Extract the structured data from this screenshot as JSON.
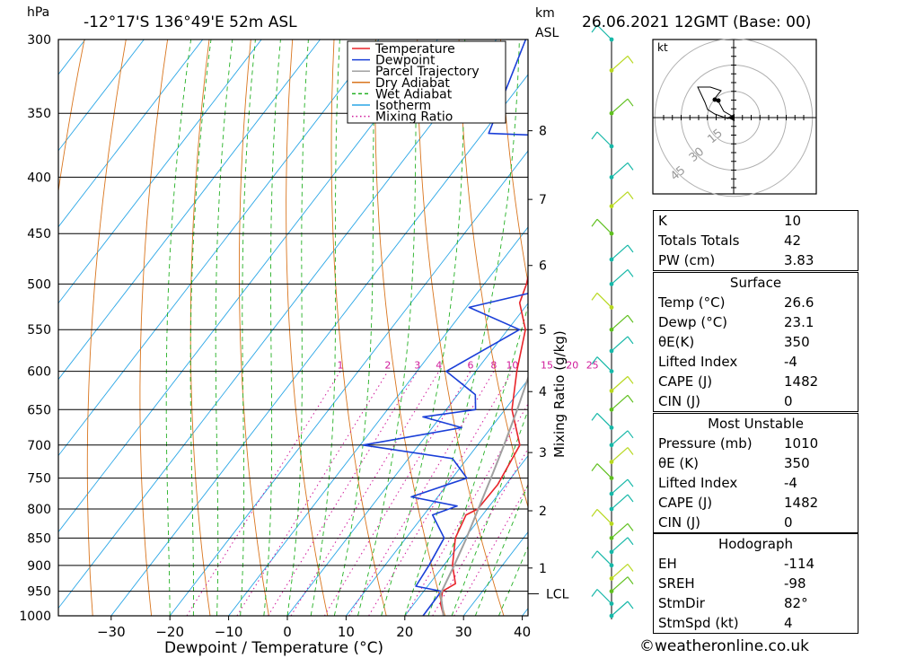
{
  "header": {
    "pressure_unit": "hPa",
    "location": "-12°17'S  136°49'E  52m  ASL",
    "km_label": "km",
    "asl_label": "ASL",
    "datetime": "26.06.2021  12GMT  (Base: 00)"
  },
  "chart_data": {
    "type": "line",
    "title": "",
    "xlabel": "Dewpoint / Temperature (°C)",
    "ylabel": "hPa",
    "secondary_ylabel": "Mixing Ratio (g/kg)",
    "xlim": [
      -40,
      40
    ],
    "ylim": [
      1000,
      300
    ],
    "x_ticks": [
      -30,
      -20,
      -10,
      0,
      10,
      20,
      30,
      40
    ],
    "pressure_levels": [
      300,
      350,
      400,
      450,
      500,
      550,
      600,
      650,
      700,
      750,
      800,
      850,
      900,
      950,
      1000
    ],
    "km_ticks": [
      {
        "km": "1",
        "p": 905
      },
      {
        "km": "2",
        "p": 803
      },
      {
        "km": "3",
        "p": 711
      },
      {
        "km": "4",
        "p": 626
      },
      {
        "km": "5",
        "p": 550
      },
      {
        "km": "6",
        "p": 481
      },
      {
        "km": "7",
        "p": 419
      },
      {
        "km": "8",
        "p": 363
      }
    ],
    "lcl": {
      "label": "LCL",
      "p": 955
    },
    "mixing_ratio_labels": [
      "1",
      "2",
      "3",
      "4",
      "6",
      "8",
      "10",
      "15",
      "20",
      "25"
    ],
    "legend": [
      {
        "name": "Temperature",
        "color": "#e8242a",
        "style": "solid"
      },
      {
        "name": "Dewpoint",
        "color": "#1a3fd8",
        "style": "solid"
      },
      {
        "name": "Parcel Trajectory",
        "color": "#a0a0a0",
        "style": "solid"
      },
      {
        "name": "Dry Adiabat",
        "color": "#d9751e",
        "style": "solid"
      },
      {
        "name": "Wet Adiabat",
        "color": "#23b023",
        "style": "dashed"
      },
      {
        "name": "Isotherm",
        "color": "#2aa6e6",
        "style": "solid"
      },
      {
        "name": "Mixing Ratio",
        "color": "#d01a9a",
        "style": "dotted"
      }
    ],
    "legend_position": "top-right",
    "series": [
      {
        "name": "Temperature",
        "points": [
          {
            "p": 1000,
            "t": 26.6
          },
          {
            "p": 975,
            "t": 24.5
          },
          {
            "p": 950,
            "t": 23.2
          },
          {
            "p": 935,
            "t": 24.4
          },
          {
            "p": 900,
            "t": 21.5
          },
          {
            "p": 850,
            "t": 18.4
          },
          {
            "p": 810,
            "t": 17.2
          },
          {
            "p": 800,
            "t": 18.4
          },
          {
            "p": 760,
            "t": 18.6
          },
          {
            "p": 700,
            "t": 17.2
          },
          {
            "p": 650,
            "t": 11.2
          },
          {
            "p": 600,
            "t": 7.0
          },
          {
            "p": 550,
            "t": 3.0
          },
          {
            "p": 520,
            "t": -1.5
          },
          {
            "p": 500,
            "t": -2.8
          },
          {
            "p": 470,
            "t": -5.6
          },
          {
            "p": 450,
            "t": -6.8
          },
          {
            "p": 400,
            "t": -12.2
          },
          {
            "p": 380,
            "t": -15.8
          },
          {
            "p": 360,
            "t": -16.8
          },
          {
            "p": 330,
            "t": -20.8
          },
          {
            "p": 300,
            "t": -25.5
          }
        ]
      },
      {
        "name": "Dewpoint",
        "points": [
          {
            "p": 1000,
            "t": 23.1
          },
          {
            "p": 950,
            "t": 23.0
          },
          {
            "p": 940,
            "t": 18.0
          },
          {
            "p": 900,
            "t": 17.5
          },
          {
            "p": 850,
            "t": 16.5
          },
          {
            "p": 810,
            "t": 11.5
          },
          {
            "p": 795,
            "t": 14.5
          },
          {
            "p": 780,
            "t": 5.5
          },
          {
            "p": 750,
            "t": 12.5
          },
          {
            "p": 720,
            "t": 7.5
          },
          {
            "p": 700,
            "t": -9.5
          },
          {
            "p": 675,
            "t": 5.0
          },
          {
            "p": 660,
            "t": -3.0
          },
          {
            "p": 650,
            "t": 5.0
          },
          {
            "p": 630,
            "t": 3.0
          },
          {
            "p": 600,
            "t": -5.0
          },
          {
            "p": 550,
            "t": 2.0
          },
          {
            "p": 525,
            "t": -9.5
          },
          {
            "p": 505,
            "t": 1.5
          },
          {
            "p": 495,
            "t": -2.0
          },
          {
            "p": 487,
            "t": 10.5
          },
          {
            "p": 460,
            "t": 11.0
          },
          {
            "p": 440,
            "t": 8.5
          },
          {
            "p": 400,
            "t": -3.0
          },
          {
            "p": 390,
            "t": -7.0
          },
          {
            "p": 385,
            "t": -2.5
          },
          {
            "p": 380,
            "t": -8.0
          },
          {
            "p": 375,
            "t": -3.0
          },
          {
            "p": 368,
            "t": -12.0
          },
          {
            "p": 365,
            "t": -29.0
          },
          {
            "p": 300,
            "t": -35.0
          }
        ]
      },
      {
        "name": "Parcel Trajectory",
        "points": [
          {
            "p": 1000,
            "t": 26.6
          },
          {
            "p": 955,
            "t": 23.2
          },
          {
            "p": 900,
            "t": 21.8
          },
          {
            "p": 850,
            "t": 20.3
          },
          {
            "p": 800,
            "t": 18.5
          },
          {
            "p": 750,
            "t": 16.6
          },
          {
            "p": 700,
            "t": 14.5
          },
          {
            "p": 650,
            "t": 12.1
          },
          {
            "p": 600,
            "t": 9.3
          },
          {
            "p": 550,
            "t": 6.2
          },
          {
            "p": 500,
            "t": 2.6
          },
          {
            "p": 450,
            "t": -1.6
          },
          {
            "p": 400,
            "t": -6.8
          },
          {
            "p": 370,
            "t": -10.5
          }
        ]
      }
    ],
    "wind_barbs": {
      "present": true
    },
    "hodograph": {
      "unit": "kt",
      "ring_labels": [
        "15",
        "30",
        "45"
      ],
      "ring_values": [
        15,
        30,
        45
      ]
    }
  },
  "indices": {
    "rows": [
      {
        "label": "K",
        "value": "10"
      },
      {
        "label": "Totals Totals",
        "value": "42"
      },
      {
        "label": "PW (cm)",
        "value": "3.83"
      }
    ]
  },
  "surface": {
    "title": "Surface",
    "rows": [
      {
        "label": "Temp (°C)",
        "value": "26.6"
      },
      {
        "label": "Dewp (°C)",
        "value": "23.1"
      },
      {
        "label": "θE(K)",
        "value": "350"
      },
      {
        "label": "Lifted Index",
        "value": "-4"
      },
      {
        "label": "CAPE (J)",
        "value": "1482"
      },
      {
        "label": "CIN (J)",
        "value": "0"
      }
    ]
  },
  "most_unstable": {
    "title": "Most Unstable",
    "rows": [
      {
        "label": "Pressure (mb)",
        "value": "1010"
      },
      {
        "label": "θE (K)",
        "value": "350"
      },
      {
        "label": "Lifted Index",
        "value": "-4"
      },
      {
        "label": "CAPE (J)",
        "value": "1482"
      },
      {
        "label": "CIN (J)",
        "value": "0"
      }
    ]
  },
  "hodograph_table": {
    "title": "Hodograph",
    "rows": [
      {
        "label": "EH",
        "value": "-114"
      },
      {
        "label": "SREH",
        "value": "-98"
      },
      {
        "label": "StmDir",
        "value": "82°"
      },
      {
        "label": "StmSpd (kt)",
        "value": "4"
      }
    ]
  },
  "footer": {
    "copyright": "©weatheronline.co.uk"
  }
}
